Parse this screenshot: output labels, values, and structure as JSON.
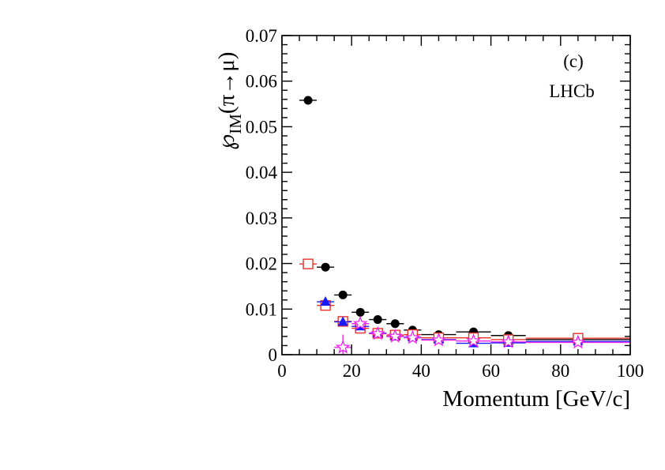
{
  "chart_data": {
    "type": "scatter",
    "xlabel": "Momentum [GeV/c]",
    "ylabel": {
      "symbol": "℘",
      "subscript": "IM",
      "reaction": "(π→μ)"
    },
    "xlim": [
      0,
      100
    ],
    "ylim": [
      0,
      0.07
    ],
    "x_ticks": [
      0,
      20,
      40,
      60,
      80,
      100
    ],
    "y_ticks": [
      0,
      0.01,
      0.02,
      0.03,
      0.04,
      0.05,
      0.06,
      0.07
    ],
    "y_tick_labels": [
      "0",
      "0.01",
      "0.02",
      "0.03",
      "0.04",
      "0.05",
      "0.06",
      "0.07"
    ],
    "grid": false,
    "annotations": [
      "(c)",
      "LHCb"
    ],
    "series": [
      {
        "marker": "filled-circle",
        "color": "#000000",
        "points": [
          {
            "x": 7.5,
            "xerr": 2.5,
            "y": 0.0558
          },
          {
            "x": 12.5,
            "xerr": 2.5,
            "y": 0.0192
          },
          {
            "x": 17.5,
            "xerr": 2.5,
            "y": 0.0131
          },
          {
            "x": 22.5,
            "xerr": 2.5,
            "y": 0.0093
          },
          {
            "x": 27.5,
            "xerr": 2.5,
            "y": 0.0077
          },
          {
            "x": 32.5,
            "xerr": 2.5,
            "y": 0.0068
          },
          {
            "x": 37.5,
            "xerr": 2.5,
            "y": 0.0054
          },
          {
            "x": 45,
            "xerr": 5,
            "y": 0.0044
          },
          {
            "x": 55,
            "xerr": 5,
            "y": 0.005
          },
          {
            "x": 65,
            "xerr": 5,
            "y": 0.0042
          },
          {
            "x": 85,
            "xerr": 15,
            "y": 0.0033
          }
        ]
      },
      {
        "marker": "open-square",
        "color": "#e8332a",
        "points": [
          {
            "x": 7.5,
            "xerr": 2.5,
            "y": 0.0199
          },
          {
            "x": 12.5,
            "xerr": 2.5,
            "y": 0.0108
          },
          {
            "x": 17.5,
            "xerr": 2.5,
            "y": 0.0073
          },
          {
            "x": 22.5,
            "xerr": 2.5,
            "y": 0.0058
          },
          {
            "x": 27.5,
            "xerr": 2.5,
            "y": 0.0047
          },
          {
            "x": 32.5,
            "xerr": 2.5,
            "y": 0.0043
          },
          {
            "x": 37.5,
            "xerr": 2.5,
            "y": 0.0044
          },
          {
            "x": 45,
            "xerr": 5,
            "y": 0.0037
          },
          {
            "x": 55,
            "xerr": 5,
            "y": 0.0037
          },
          {
            "x": 65,
            "xerr": 5,
            "y": 0.0033
          },
          {
            "x": 85,
            "xerr": 15,
            "y": 0.0036
          }
        ]
      },
      {
        "marker": "filled-triangle",
        "color": "#1a1aff",
        "points": [
          {
            "x": 12.5,
            "xerr": 2.5,
            "y": 0.0116
          },
          {
            "x": 17.5,
            "xerr": 2.5,
            "y": 0.0072
          },
          {
            "x": 22.5,
            "xerr": 2.5,
            "y": 0.0062
          },
          {
            "x": 27.5,
            "xerr": 2.5,
            "y": 0.0047
          },
          {
            "x": 32.5,
            "xerr": 2.5,
            "y": 0.004
          },
          {
            "x": 37.5,
            "xerr": 2.5,
            "y": 0.0038
          },
          {
            "x": 45,
            "xerr": 5,
            "y": 0.0033
          },
          {
            "x": 55,
            "xerr": 5,
            "y": 0.0025
          },
          {
            "x": 65,
            "xerr": 5,
            "y": 0.0026
          },
          {
            "x": 85,
            "xerr": 15,
            "y": 0.0029
          }
        ]
      },
      {
        "marker": "open-star",
        "color": "#ee22ee",
        "points": [
          {
            "x": 17.5,
            "xerr": 2.5,
            "y": 0.0016,
            "yerr": 0.0028
          },
          {
            "x": 22.5,
            "xerr": 2.5,
            "y": 0.0068
          },
          {
            "x": 27.5,
            "xerr": 2.5,
            "y": 0.0046
          },
          {
            "x": 32.5,
            "xerr": 2.5,
            "y": 0.004
          },
          {
            "x": 37.5,
            "xerr": 2.5,
            "y": 0.0037
          },
          {
            "x": 45,
            "xerr": 5,
            "y": 0.0032
          },
          {
            "x": 55,
            "xerr": 5,
            "y": 0.003
          },
          {
            "x": 65,
            "xerr": 5,
            "y": 0.0028
          },
          {
            "x": 85,
            "xerr": 15,
            "y": 0.0027
          }
        ]
      }
    ]
  }
}
